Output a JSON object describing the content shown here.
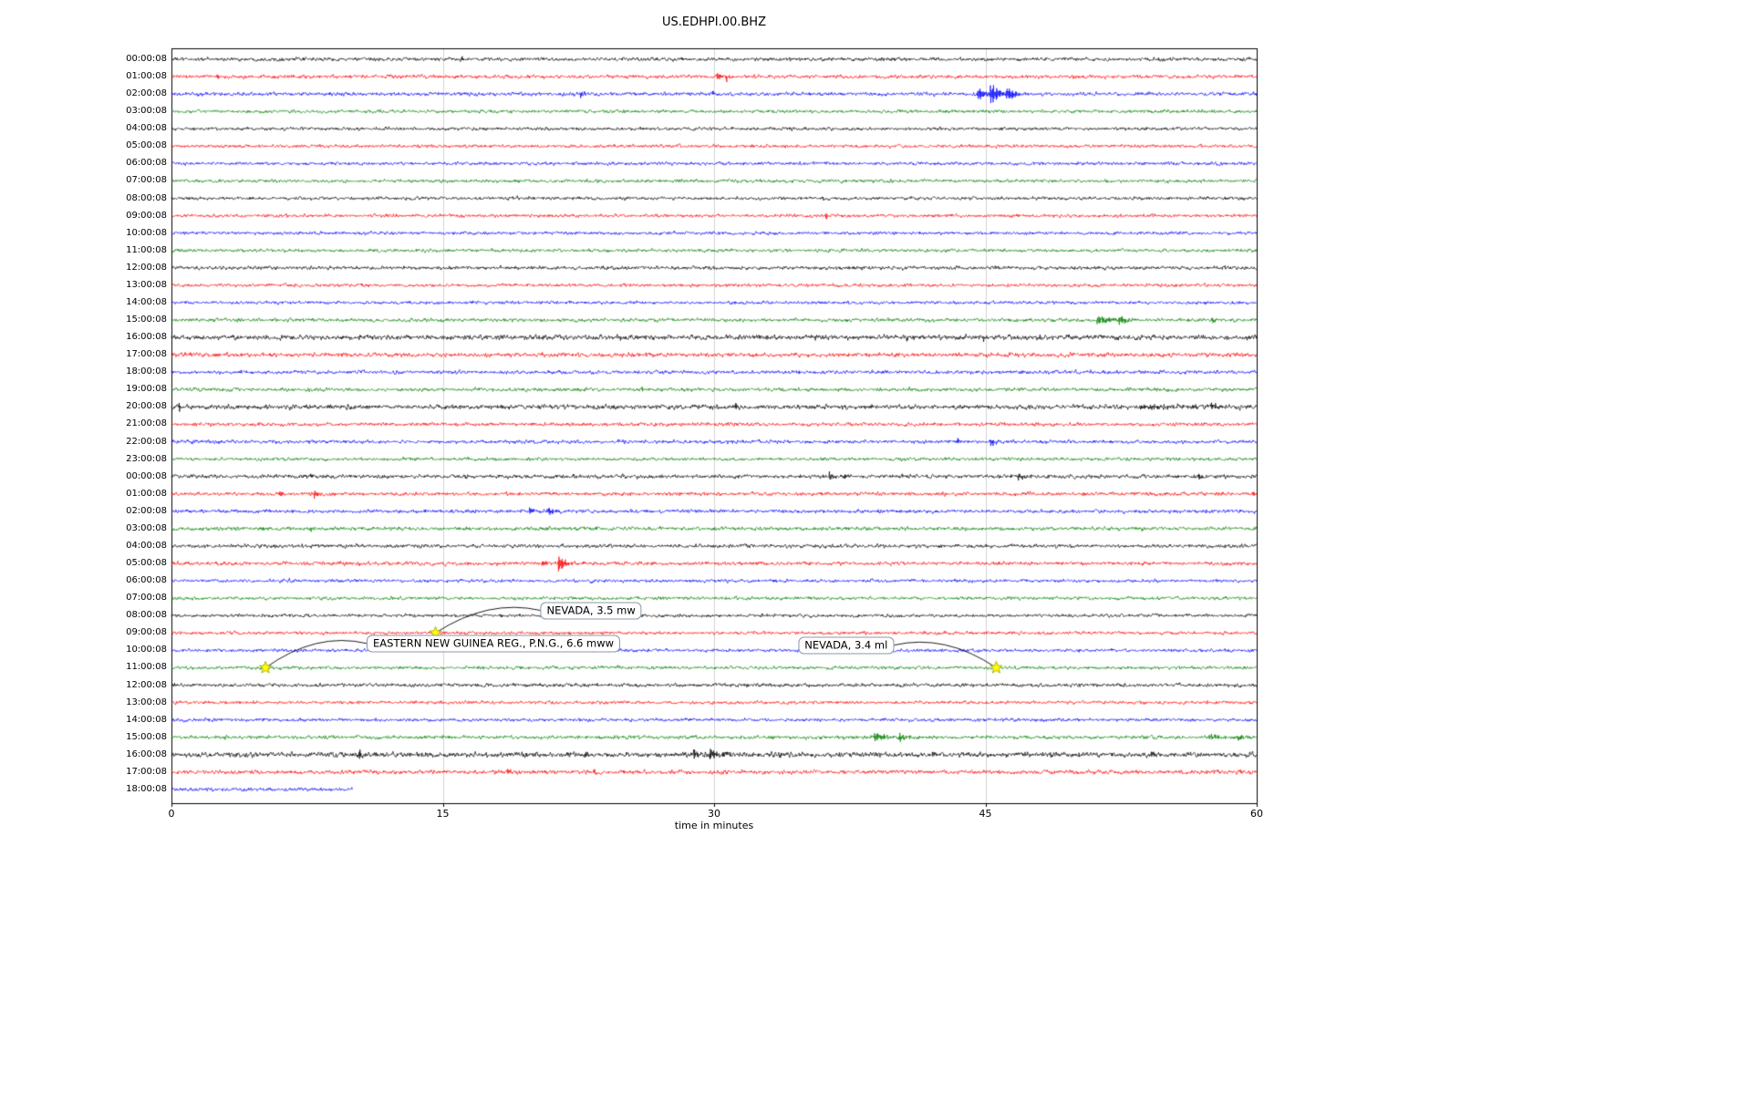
{
  "chart_data": {
    "type": "line",
    "subtype": "helicorder-dayplot",
    "title": "US.EDHPI.00.BHZ",
    "xlabel": "time in minutes",
    "xlim": [
      0,
      60
    ],
    "xticks": [
      "0",
      "15",
      "30",
      "45",
      "60"
    ],
    "xtick_values": [
      0,
      15,
      30,
      45,
      60
    ],
    "grid": {
      "vertical_at": [
        15,
        30,
        45
      ],
      "color": "#c8c8c8"
    },
    "colors": {
      "black": "#000000",
      "red": "#ff0000",
      "blue": "#0000ff",
      "green": "#008000",
      "star_fill": "#ffff00",
      "star_edge": "#999900",
      "annotation_border": "#8899aa",
      "axes_edge": "#000000"
    },
    "rows": [
      {
        "label": "00:00:08",
        "color": "black",
        "noise": 1.0,
        "duration": 60,
        "events": [
          {
            "t": 16.0,
            "amp": 4,
            "decay": 0.1
          }
        ]
      },
      {
        "label": "01:00:08",
        "color": "red",
        "noise": 1.0,
        "duration": 60,
        "events": [
          {
            "t": 2.5,
            "amp": 5,
            "decay": 0.12
          },
          {
            "t": 30.2,
            "amp": 7,
            "decay": 0.15
          },
          {
            "t": 30.7,
            "amp": 5,
            "decay": 0.1
          }
        ]
      },
      {
        "label": "02:00:08",
        "color": "blue",
        "noise": 1.0,
        "duration": 60,
        "events": [
          {
            "t": 22.6,
            "amp": 5,
            "decay": 0.15
          },
          {
            "t": 29.9,
            "amp": 4,
            "decay": 0.12
          },
          {
            "t": 44.6,
            "amp": 10,
            "decay": 0.3
          },
          {
            "t": 45.3,
            "amp": 12,
            "decay": 0.5
          },
          {
            "t": 46.2,
            "amp": 8,
            "decay": 0.4
          }
        ]
      },
      {
        "label": "03:00:08",
        "color": "green",
        "noise": 0.9,
        "duration": 60,
        "events": []
      },
      {
        "label": "04:00:08",
        "color": "black",
        "noise": 0.9,
        "duration": 60,
        "events": []
      },
      {
        "label": "05:00:08",
        "color": "red",
        "noise": 0.9,
        "duration": 60,
        "events": []
      },
      {
        "label": "06:00:08",
        "color": "blue",
        "noise": 0.9,
        "duration": 60,
        "events": []
      },
      {
        "label": "07:00:08",
        "color": "green",
        "noise": 0.9,
        "duration": 60,
        "events": []
      },
      {
        "label": "08:00:08",
        "color": "black",
        "noise": 0.9,
        "duration": 60,
        "events": [
          {
            "t": 36.0,
            "amp": 2.5,
            "decay": 0.1
          }
        ]
      },
      {
        "label": "09:00:08",
        "color": "red",
        "noise": 0.9,
        "duration": 60,
        "events": [
          {
            "t": 36.2,
            "amp": 4,
            "decay": 0.08
          }
        ]
      },
      {
        "label": "10:00:08",
        "color": "blue",
        "noise": 0.9,
        "duration": 60,
        "events": []
      },
      {
        "label": "11:00:08",
        "color": "green",
        "noise": 0.9,
        "duration": 60,
        "events": []
      },
      {
        "label": "12:00:08",
        "color": "black",
        "noise": 1.0,
        "duration": 60,
        "events": []
      },
      {
        "label": "13:00:08",
        "color": "red",
        "noise": 0.9,
        "duration": 60,
        "events": []
      },
      {
        "label": "14:00:08",
        "color": "blue",
        "noise": 0.9,
        "duration": 60,
        "events": []
      },
      {
        "label": "15:00:08",
        "color": "green",
        "noise": 1.0,
        "duration": 60,
        "events": [
          {
            "t": 51.2,
            "amp": 7,
            "decay": 0.6
          },
          {
            "t": 52.4,
            "amp": 5,
            "decay": 0.5
          },
          {
            "t": 57.5,
            "amp": 3,
            "decay": 0.3
          }
        ]
      },
      {
        "label": "16:00:08",
        "color": "black",
        "noise": 1.4,
        "duration": 60,
        "events": [
          {
            "t": 35.6,
            "amp": 5,
            "decay": 0.08
          },
          {
            "t": 40.7,
            "amp": 4,
            "decay": 0.08
          },
          {
            "t": 44.9,
            "amp": 4,
            "decay": 0.08
          },
          {
            "t": 52.3,
            "amp": 5,
            "decay": 0.1
          }
        ]
      },
      {
        "label": "17:00:08",
        "color": "red",
        "noise": 1.2,
        "duration": 60,
        "events": [
          {
            "t": 9.6,
            "amp": 4,
            "decay": 0.08
          },
          {
            "t": 14.4,
            "amp": 5,
            "decay": 0.08
          }
        ]
      },
      {
        "label": "18:00:08",
        "color": "blue",
        "noise": 1.0,
        "duration": 60,
        "events": [
          {
            "t": 37.7,
            "amp": 5,
            "decay": 0.08
          },
          {
            "t": 47.3,
            "amp": 3,
            "decay": 0.08
          }
        ]
      },
      {
        "label": "19:00:08",
        "color": "green",
        "noise": 1.0,
        "duration": 60,
        "events": [
          {
            "t": 26.0,
            "amp": 4,
            "decay": 0.1
          }
        ]
      },
      {
        "label": "20:00:08",
        "color": "black",
        "noise": 1.3,
        "duration": 60,
        "events": [
          {
            "t": 0.4,
            "amp": 7,
            "decay": 0.12
          },
          {
            "t": 31.2,
            "amp": 5,
            "decay": 0.1
          },
          {
            "t": 53.5,
            "amp": 2.5,
            "decay": 3.0
          },
          {
            "t": 57.5,
            "amp": 4,
            "decay": 0.3
          }
        ]
      },
      {
        "label": "21:00:08",
        "color": "red",
        "noise": 1.0,
        "duration": 60,
        "events": []
      },
      {
        "label": "22:00:08",
        "color": "blue",
        "noise": 1.0,
        "duration": 60,
        "events": [
          {
            "t": 43.4,
            "amp": 5,
            "decay": 0.15
          },
          {
            "t": 45.3,
            "amp": 6,
            "decay": 0.2
          }
        ]
      },
      {
        "label": "23:00:08",
        "color": "green",
        "noise": 0.9,
        "duration": 60,
        "events": [
          {
            "t": 42.8,
            "amp": 2.5,
            "decay": 0.1
          }
        ]
      },
      {
        "label": "00:00:08",
        "color": "black",
        "noise": 1.1,
        "duration": 60,
        "events": [
          {
            "t": 7.7,
            "amp": 3,
            "decay": 0.1
          },
          {
            "t": 36.4,
            "amp": 5,
            "decay": 0.2
          },
          {
            "t": 37.2,
            "amp": 4,
            "decay": 0.15
          },
          {
            "t": 46.8,
            "amp": 6,
            "decay": 0.25
          },
          {
            "t": 56.8,
            "amp": 4,
            "decay": 0.2
          },
          {
            "t": 58.2,
            "amp": 3,
            "decay": 0.15
          }
        ]
      },
      {
        "label": "01:00:08",
        "color": "red",
        "noise": 1.0,
        "duration": 60,
        "events": [
          {
            "t": 6.0,
            "amp": 4,
            "decay": 0.15
          },
          {
            "t": 7.9,
            "amp": 5,
            "decay": 0.2
          },
          {
            "t": 59.8,
            "amp": 4,
            "decay": 0.1
          }
        ]
      },
      {
        "label": "02:00:08",
        "color": "blue",
        "noise": 1.0,
        "duration": 60,
        "events": [
          {
            "t": 19.8,
            "amp": 5,
            "decay": 0.3
          },
          {
            "t": 20.8,
            "amp": 6,
            "decay": 0.3
          }
        ]
      },
      {
        "label": "03:00:08",
        "color": "green",
        "noise": 1.0,
        "duration": 60,
        "events": [
          {
            "t": 5.0,
            "amp": 3.5,
            "decay": 0.15
          },
          {
            "t": 7.7,
            "amp": 3,
            "decay": 0.12
          }
        ]
      },
      {
        "label": "04:00:08",
        "color": "black",
        "noise": 1.0,
        "duration": 60,
        "events": []
      },
      {
        "label": "05:00:08",
        "color": "red",
        "noise": 1.0,
        "duration": 60,
        "events": [
          {
            "t": 20.5,
            "amp": 4,
            "decay": 0.2
          },
          {
            "t": 21.4,
            "amp": 11,
            "decay": 0.35
          }
        ]
      },
      {
        "label": "06:00:08",
        "color": "blue",
        "noise": 0.9,
        "duration": 60,
        "events": []
      },
      {
        "label": "07:00:08",
        "color": "green",
        "noise": 0.9,
        "duration": 60,
        "events": []
      },
      {
        "label": "08:00:08",
        "color": "black",
        "noise": 0.9,
        "duration": 60,
        "events": []
      },
      {
        "label": "09:00:08",
        "color": "red",
        "noise": 0.9,
        "duration": 60,
        "events": [
          {
            "t": 14.6,
            "amp": 2,
            "decay": 0.3
          }
        ]
      },
      {
        "label": "10:00:08",
        "color": "blue",
        "noise": 0.9,
        "duration": 60,
        "events": []
      },
      {
        "label": "11:00:08",
        "color": "green",
        "noise": 0.9,
        "duration": 60,
        "events": [
          {
            "t": 5.2,
            "amp": 1.5,
            "decay": 0.3
          },
          {
            "t": 45.6,
            "amp": 1.5,
            "decay": 0.3
          }
        ]
      },
      {
        "label": "12:00:08",
        "color": "black",
        "noise": 1.0,
        "duration": 60,
        "events": []
      },
      {
        "label": "13:00:08",
        "color": "red",
        "noise": 0.9,
        "duration": 60,
        "events": []
      },
      {
        "label": "14:00:08",
        "color": "blue",
        "noise": 0.9,
        "duration": 60,
        "events": []
      },
      {
        "label": "15:00:08",
        "color": "green",
        "noise": 1.0,
        "duration": 60,
        "events": [
          {
            "t": 38.9,
            "amp": 7,
            "decay": 0.5
          },
          {
            "t": 40.2,
            "amp": 5,
            "decay": 0.4
          },
          {
            "t": 57.4,
            "amp": 4,
            "decay": 0.5
          },
          {
            "t": 59.0,
            "amp": 3,
            "decay": 0.3
          }
        ]
      },
      {
        "label": "16:00:08",
        "color": "black",
        "noise": 1.4,
        "duration": 60,
        "events": [
          {
            "t": 10.4,
            "amp": 6,
            "decay": 0.1
          },
          {
            "t": 22.9,
            "amp": 5,
            "decay": 0.15
          },
          {
            "t": 25.1,
            "amp": 4,
            "decay": 0.1
          },
          {
            "t": 28.9,
            "amp": 7,
            "decay": 0.2
          },
          {
            "t": 29.8,
            "amp": 8,
            "decay": 0.25
          },
          {
            "t": 30.5,
            "amp": 5,
            "decay": 0.2
          },
          {
            "t": 33.6,
            "amp": 4,
            "decay": 0.1
          },
          {
            "t": 42.1,
            "amp": 5,
            "decay": 0.12
          },
          {
            "t": 48.6,
            "amp": 3,
            "decay": 0.1
          },
          {
            "t": 54.2,
            "amp": 5,
            "decay": 0.12
          }
        ]
      },
      {
        "label": "17:00:08",
        "color": "red",
        "noise": 1.1,
        "duration": 60,
        "events": [
          {
            "t": 18.6,
            "amp": 5,
            "decay": 0.1
          },
          {
            "t": 23.4,
            "amp": 4,
            "decay": 0.1
          },
          {
            "t": 24.9,
            "amp": 4,
            "decay": 0.1
          }
        ]
      },
      {
        "label": "18:00:08",
        "color": "blue",
        "noise": 1.0,
        "duration": 10,
        "events": []
      }
    ],
    "annotations": [
      {
        "text": "NEVADA, 3.5 mw",
        "star": {
          "row": 33,
          "t": 14.6
        },
        "label": {
          "row": 31.7,
          "t": 23.2
        },
        "anchor": "left"
      },
      {
        "text": "EASTERN NEW GUINEA REG., P.N.G., 6.6 mww",
        "star": {
          "row": 35,
          "t": 5.2
        },
        "label": {
          "row": 33.6,
          "t": 17.8
        },
        "anchor": "left"
      },
      {
        "text": "NEVADA, 3.4 ml",
        "star": {
          "row": 35,
          "t": 45.6
        },
        "label": {
          "row": 33.7,
          "t": 37.3
        },
        "anchor": "right"
      }
    ]
  }
}
